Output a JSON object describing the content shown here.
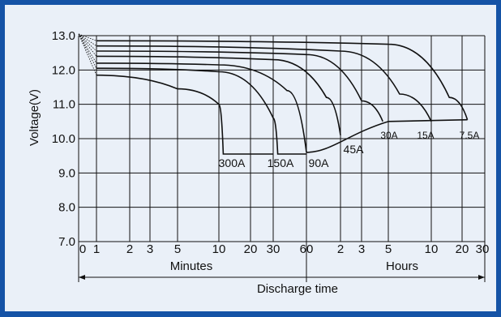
{
  "colors": {
    "border": "#1553a6",
    "plot_bg": "#eaf0f8",
    "line": "#111111"
  },
  "chart_data": {
    "type": "line",
    "title": "",
    "ylabel": "Voltage(V)",
    "xlabel": "Discharge time",
    "ylim": [
      7.0,
      13.0
    ],
    "y_ticks": [
      "13.0",
      "12.0",
      "11.0",
      "10.0",
      "9.0",
      "8.0",
      "7.0"
    ],
    "x_tick_labels": [
      "0",
      "1",
      "2",
      "3",
      "5",
      "10",
      "20",
      "30",
      "60",
      "2",
      "3",
      "5",
      "10",
      "20",
      "30"
    ],
    "x_sections": [
      {
        "name": "Minutes"
      },
      {
        "name": "Hours"
      }
    ],
    "grid": true,
    "series": [
      {
        "name": "300A",
        "points": [
          [
            "1 min",
            11.85
          ],
          [
            "5 min",
            11.45
          ],
          [
            "10 min",
            11.0
          ],
          [
            "11 min",
            9.55
          ],
          [
            "30 min",
            9.55
          ]
        ]
      },
      {
        "name": "150A",
        "points": [
          [
            "1 min",
            12.05
          ],
          [
            "10 min",
            11.95
          ],
          [
            "30 min",
            10.6
          ],
          [
            "33 min",
            9.55
          ],
          [
            "60 min",
            9.55
          ]
        ]
      },
      {
        "name": "90A",
        "points": [
          [
            "1 min",
            12.2
          ],
          [
            "10 min",
            12.15
          ],
          [
            "40 min",
            11.4
          ],
          [
            "60 min",
            9.6
          ]
        ]
      },
      {
        "name": "45A",
        "points": [
          [
            "1 min",
            12.4
          ],
          [
            "30 min",
            12.3
          ],
          [
            "1.5 h",
            11.2
          ],
          [
            "2 h",
            10.1
          ]
        ]
      },
      {
        "name": "30A",
        "points": [
          [
            "1 min",
            12.55
          ],
          [
            "1 h",
            12.45
          ],
          [
            "3 h",
            11.1
          ],
          [
            "4.5 h",
            10.5
          ]
        ]
      },
      {
        "name": "15A",
        "points": [
          [
            "1 min",
            12.7
          ],
          [
            "2 h",
            12.55
          ],
          [
            "6 h",
            11.3
          ],
          [
            "10 h",
            10.5
          ]
        ]
      },
      {
        "name": "7.5A",
        "points": [
          [
            "1 min",
            12.85
          ],
          [
            "5 h",
            12.75
          ],
          [
            "15 h",
            11.2
          ],
          [
            "22 h",
            10.55
          ]
        ]
      }
    ],
    "recovery_curve": [
      [
        "60 min",
        9.6
      ],
      [
        "2 h",
        10.15
      ],
      [
        "5 h",
        10.5
      ],
      [
        "22 h",
        10.55
      ]
    ]
  }
}
